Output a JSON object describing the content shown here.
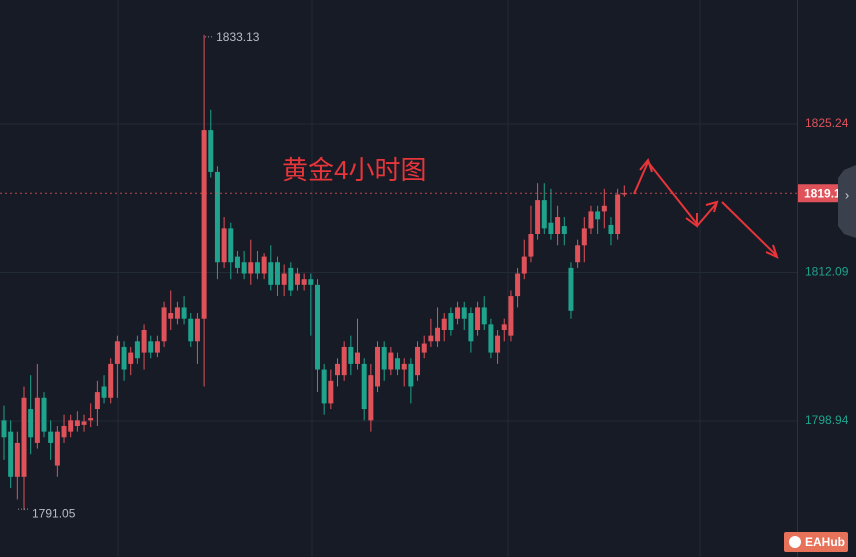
{
  "chart_data": {
    "type": "candlestick",
    "title": "黄金4小时图",
    "up_color": "#e0525a",
    "down_color": "#1fa38d",
    "ylim": [
      1786.9,
      1836.22
    ],
    "yticks": [
      1825.24,
      1812.09,
      1798.94
    ],
    "grid": true,
    "ohlc": [
      [
        1799,
        1800.3,
        1795.5,
        1797.5
      ],
      [
        1798,
        1799,
        1793,
        1794
      ],
      [
        1794,
        1798,
        1792,
        1797
      ],
      [
        1794,
        1802,
        1791.05,
        1801
      ],
      [
        1800,
        1803,
        1796,
        1797.5
      ],
      [
        1797,
        1804,
        1796.5,
        1801
      ],
      [
        1801,
        1801.5,
        1797.5,
        1798
      ],
      [
        1798,
        1799,
        1795.5,
        1797
      ],
      [
        1795,
        1798.5,
        1794,
        1798
      ],
      [
        1797.5,
        1799.5,
        1797,
        1798.5
      ],
      [
        1798,
        1799.5,
        1797.5,
        1799
      ],
      [
        1798.5,
        1799.8,
        1798,
        1799
      ],
      [
        1798.6,
        1799.5,
        1798,
        1798.9
      ],
      [
        1799,
        1800.5,
        1798.4,
        1799.2
      ],
      [
        1800,
        1802.5,
        1798.5,
        1801.5
      ],
      [
        1802,
        1803,
        1800.5,
        1801
      ],
      [
        1801,
        1804.5,
        1800.5,
        1804
      ],
      [
        1804,
        1806.5,
        1801,
        1806
      ],
      [
        1805.5,
        1806,
        1802.5,
        1803.5
      ],
      [
        1804,
        1805.5,
        1803,
        1805
      ],
      [
        1806,
        1806.5,
        1804,
        1804.5
      ],
      [
        1805,
        1807.5,
        1803.5,
        1807
      ],
      [
        1806,
        1806.5,
        1804.5,
        1805
      ],
      [
        1805,
        1806.5,
        1804.6,
        1806
      ],
      [
        1806,
        1809.5,
        1805.5,
        1809
      ],
      [
        1808,
        1810.5,
        1807,
        1808.5
      ],
      [
        1808,
        1809.5,
        1807.5,
        1809
      ],
      [
        1809,
        1810,
        1807.5,
        1808
      ],
      [
        1808,
        1808.5,
        1805.5,
        1806
      ],
      [
        1806,
        1808.5,
        1804,
        1808
      ],
      [
        1808,
        1833.13,
        1802,
        1824.7
      ],
      [
        1824.7,
        1826.5,
        1820.5,
        1821
      ],
      [
        1821,
        1821.5,
        1811.5,
        1813
      ],
      [
        1813,
        1817,
        1812.5,
        1816
      ],
      [
        1816,
        1816.5,
        1811.5,
        1813
      ],
      [
        1813.5,
        1814,
        1812,
        1812.5
      ],
      [
        1813,
        1814,
        1811.5,
        1812
      ],
      [
        1812,
        1815,
        1811,
        1813
      ],
      [
        1813,
        1814,
        1811.5,
        1812
      ],
      [
        1812,
        1813.8,
        1811.5,
        1813.5
      ],
      [
        1813,
        1814.5,
        1810.5,
        1811
      ],
      [
        1813,
        1813.5,
        1810,
        1811
      ],
      [
        1811,
        1812.8,
        1810,
        1812
      ],
      [
        1812.5,
        1813,
        1810,
        1810.5
      ],
      [
        1811,
        1812.5,
        1810.5,
        1812
      ],
      [
        1811,
        1812,
        1810.5,
        1811.5
      ],
      [
        1811.5,
        1812,
        1806.5,
        1811
      ],
      [
        1811,
        1811.5,
        1801.5,
        1803.5
      ],
      [
        1803.5,
        1804,
        1799.5,
        1800.5
      ],
      [
        1800.5,
        1803.5,
        1800,
        1802.5
      ],
      [
        1803,
        1804.5,
        1802,
        1804
      ],
      [
        1803,
        1806,
        1802.5,
        1805.5
      ],
      [
        1805.5,
        1806.5,
        1803,
        1804
      ],
      [
        1804,
        1808,
        1803.5,
        1805
      ],
      [
        1804,
        1804.5,
        1799,
        1800
      ],
      [
        1799,
        1804,
        1798,
        1803
      ],
      [
        1802,
        1806,
        1801.5,
        1805.5
      ],
      [
        1805.5,
        1806,
        1802.5,
        1803.5
      ],
      [
        1803.5,
        1805.5,
        1803,
        1805
      ],
      [
        1804.5,
        1805,
        1803,
        1803.5
      ],
      [
        1803.5,
        1804.5,
        1802,
        1804
      ],
      [
        1804,
        1804.5,
        1800.5,
        1802
      ],
      [
        1803,
        1806,
        1802.5,
        1805.5
      ],
      [
        1805,
        1806.5,
        1804.5,
        1805.8
      ],
      [
        1806,
        1808,
        1805.5,
        1806.5
      ],
      [
        1806,
        1809,
        1805.5,
        1807.2
      ],
      [
        1807,
        1808.5,
        1806,
        1808
      ],
      [
        1808.5,
        1809,
        1806.5,
        1807
      ],
      [
        1808,
        1809.5,
        1807.5,
        1809
      ],
      [
        1809,
        1809.5,
        1807,
        1808
      ],
      [
        1808.5,
        1809,
        1805,
        1806
      ],
      [
        1807,
        1809.5,
        1806.5,
        1809
      ],
      [
        1809,
        1810,
        1807,
        1807.5
      ],
      [
        1807.5,
        1808,
        1804.5,
        1805
      ],
      [
        1805,
        1807,
        1804,
        1806.5
      ],
      [
        1807,
        1808,
        1806,
        1807.5
      ],
      [
        1806.5,
        1810.5,
        1806,
        1810
      ],
      [
        1810,
        1812.5,
        1809,
        1812
      ],
      [
        1812,
        1815,
        1811.5,
        1813.5
      ],
      [
        1813.5,
        1818,
        1813,
        1815.5
      ],
      [
        1815.5,
        1820,
        1815,
        1818.5
      ],
      [
        1818.5,
        1820,
        1815.5,
        1816
      ],
      [
        1816.5,
        1819.5,
        1815,
        1815.5
      ],
      [
        1815.5,
        1818,
        1814.5,
        1817
      ],
      [
        1816.2,
        1817,
        1814.5,
        1815.5
      ],
      [
        1812.5,
        1813,
        1808,
        1808.7
      ],
      [
        1813,
        1815,
        1812.5,
        1814.5
      ],
      [
        1814.5,
        1817,
        1813,
        1816
      ],
      [
        1816,
        1818,
        1815.5,
        1817.5
      ],
      [
        1817.5,
        1818,
        1815.5,
        1816.8
      ],
      [
        1817.5,
        1819.5,
        1816,
        1818
      ],
      [
        1816.3,
        1817,
        1814.5,
        1815.5
      ],
      [
        1815.5,
        1819.5,
        1815,
        1819
      ],
      [
        1819,
        1819.8,
        1818.8,
        1819.11
      ]
    ],
    "watermark": "EAHub"
  }
}
